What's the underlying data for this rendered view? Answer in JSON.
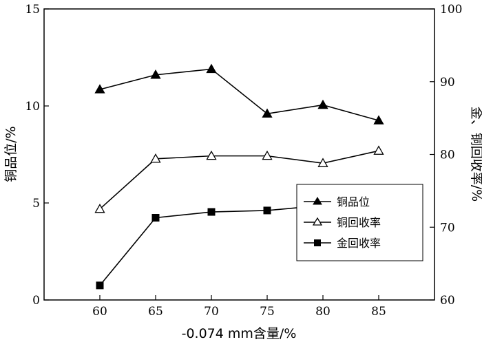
{
  "chart_data": {
    "type": "line",
    "title": "",
    "xlabel": "-0.074 mm含量/%",
    "ylabel_left": "铜品位/%",
    "ylabel_right": "金、铜回收率/%",
    "x": [
      60,
      65,
      70,
      75,
      80,
      85
    ],
    "xlim": [
      55,
      90
    ],
    "ylim_left": [
      0,
      15
    ],
    "ylim_right": [
      60,
      100
    ],
    "x_ticks": [
      "60",
      "65",
      "70",
      "75",
      "80",
      "85"
    ],
    "y_ticks_left": [
      "0",
      "5",
      "10",
      "15"
    ],
    "y_ticks_right": [
      "60",
      "70",
      "80",
      "90",
      "100"
    ],
    "grid": false,
    "legend_position": "lower-right",
    "series": [
      {
        "name": "铜品位",
        "axis": "left",
        "marker": "triangle-filled",
        "values": [
          10.85,
          11.6,
          11.9,
          9.6,
          10.05,
          9.25
        ]
      },
      {
        "name": "铜回收率",
        "axis": "right",
        "marker": "triangle-open",
        "values": [
          72.5,
          79.4,
          79.8,
          79.8,
          78.8,
          80.5
        ]
      },
      {
        "name": "金回收率",
        "axis": "right",
        "marker": "square-filled",
        "values": [
          62.0,
          71.3,
          72.1,
          72.3,
          73.0,
          73.3
        ]
      }
    ]
  }
}
